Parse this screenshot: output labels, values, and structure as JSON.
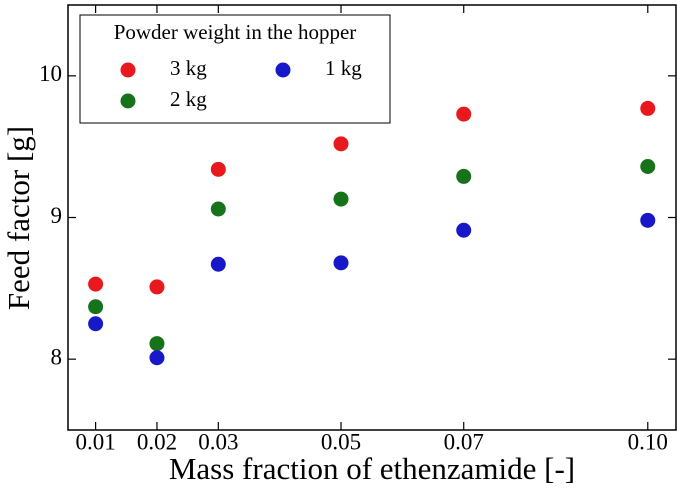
{
  "chart_data": {
    "type": "scatter",
    "xlabel": "Mass fraction of ethenzamide [-]",
    "ylabel": "Feed factor [g]",
    "legend_title": "Powder weight in the hopper",
    "legend_position": "upper left",
    "x": [
      0.01,
      0.02,
      0.03,
      0.05,
      0.07,
      0.1
    ],
    "series": [
      {
        "name": "3 kg",
        "color": "#e8191e",
        "values": [
          8.53,
          8.51,
          9.34,
          9.52,
          9.73,
          9.77
        ]
      },
      {
        "name": "2 kg",
        "color": "#16731a",
        "values": [
          8.37,
          8.11,
          9.06,
          9.13,
          9.29,
          9.36
        ]
      },
      {
        "name": "1 kg",
        "color": "#1818c8",
        "values": [
          8.25,
          8.01,
          8.67,
          8.68,
          8.91,
          8.98
        ]
      }
    ],
    "xlim": [
      0.0055,
      0.1046
    ],
    "ylim": [
      7.5,
      10.5
    ],
    "xticks": [
      0.01,
      0.02,
      0.03,
      0.05,
      0.07,
      {
        "value": 0.1,
        "label": "0.10"
      }
    ],
    "yticks": [
      8,
      9,
      10
    ]
  }
}
